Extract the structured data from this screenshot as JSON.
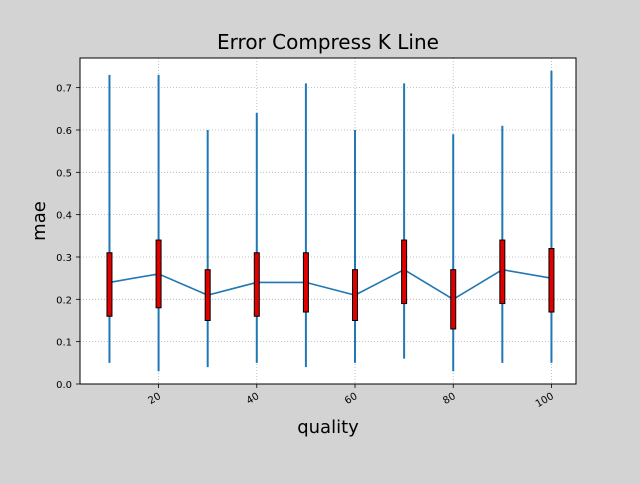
{
  "chart_data": {
    "type": "candlestick",
    "title": "Error Compress K Line",
    "xlabel": "quality",
    "ylabel": "mae",
    "xlim": [
      4,
      105
    ],
    "ylim": [
      0.0,
      0.77
    ],
    "grid": true,
    "x_ticks": [
      20,
      40,
      60,
      80,
      100
    ],
    "y_ticks": [
      0.0,
      0.1,
      0.2,
      0.3,
      0.4,
      0.5,
      0.6,
      0.7
    ],
    "x_tick_labels": [
      "20",
      "40",
      "60",
      "80",
      "100"
    ],
    "y_tick_labels": [
      "0.0",
      "0.1",
      "0.2",
      "0.3",
      "0.4",
      "0.5",
      "0.6",
      "0.7"
    ],
    "colors": {
      "line": "#1f77b4",
      "whisker": "#1f77b4",
      "box_fill": "#e00000",
      "box_edge": "#000000",
      "axes_bg": "#ffffff",
      "figure_bg": "#d3d3d3"
    },
    "points": [
      {
        "x": 10,
        "min": 0.05,
        "low": 0.16,
        "mean": 0.24,
        "high": 0.31,
        "max": 0.73
      },
      {
        "x": 20,
        "min": 0.03,
        "low": 0.18,
        "mean": 0.26,
        "high": 0.34,
        "max": 0.73
      },
      {
        "x": 30,
        "min": 0.04,
        "low": 0.15,
        "mean": 0.21,
        "high": 0.27,
        "max": 0.6
      },
      {
        "x": 40,
        "min": 0.05,
        "low": 0.16,
        "mean": 0.24,
        "high": 0.31,
        "max": 0.64
      },
      {
        "x": 50,
        "min": 0.04,
        "low": 0.17,
        "mean": 0.24,
        "high": 0.31,
        "max": 0.71
      },
      {
        "x": 60,
        "min": 0.05,
        "low": 0.15,
        "mean": 0.21,
        "high": 0.27,
        "max": 0.6
      },
      {
        "x": 70,
        "min": 0.06,
        "low": 0.19,
        "mean": 0.27,
        "high": 0.34,
        "max": 0.71
      },
      {
        "x": 80,
        "min": 0.03,
        "low": 0.13,
        "mean": 0.2,
        "high": 0.27,
        "max": 0.59
      },
      {
        "x": 90,
        "min": 0.05,
        "low": 0.19,
        "mean": 0.27,
        "high": 0.34,
        "max": 0.61
      },
      {
        "x": 100,
        "min": 0.05,
        "low": 0.17,
        "mean": 0.25,
        "high": 0.32,
        "max": 0.74
      }
    ]
  }
}
